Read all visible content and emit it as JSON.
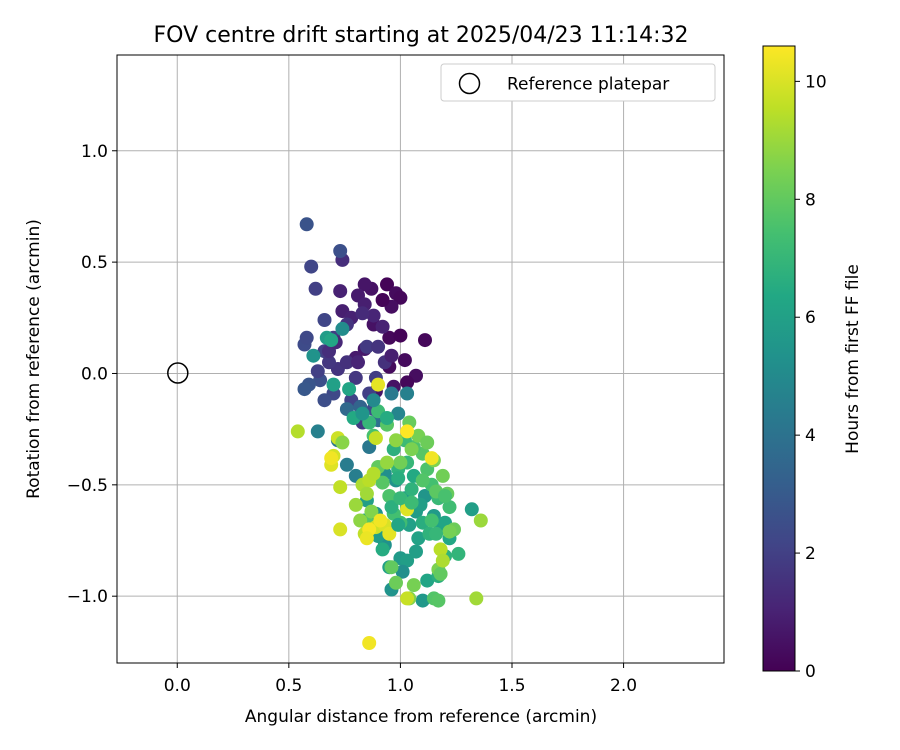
{
  "chart_data": {
    "type": "scatter",
    "title": "FOV centre drift starting at 2025/04/23 11:14:32",
    "xlabel": "Angular distance from reference (arcmin)",
    "ylabel": "Rotation from reference (arcmin)",
    "colorbar_label": "Hours from first FF file",
    "xlim": [
      -0.27,
      2.45
    ],
    "ylim": [
      -1.3,
      1.43
    ],
    "x_ticks": [
      0.0,
      0.5,
      1.0,
      1.5,
      2.0
    ],
    "x_tick_labels": [
      "0.0",
      "0.5",
      "1.0",
      "1.5",
      "2.0"
    ],
    "y_ticks": [
      -1.0,
      -0.5,
      0.0,
      0.5,
      1.0
    ],
    "y_tick_labels": [
      "−1.0",
      "−0.5",
      "0.0",
      "0.5",
      "1.0"
    ],
    "colorbar_range": [
      0,
      10.6
    ],
    "colorbar_ticks": [
      0,
      2,
      4,
      6,
      8,
      10
    ],
    "colorbar_tick_labels": [
      "0",
      "2",
      "4",
      "6",
      "8",
      "10"
    ],
    "colormap": "viridis",
    "grid": true,
    "legend": {
      "placement": "top-right",
      "entries": [
        "Reference platepar"
      ]
    },
    "reference": {
      "x": 0.0,
      "y": 0.0,
      "label": "Reference platepar"
    },
    "points": [
      [
        0.94,
        0.4,
        0.1
      ],
      [
        0.98,
        0.36,
        0.3
      ],
      [
        1.0,
        0.34,
        0.2
      ],
      [
        0.96,
        0.3,
        0.4
      ],
      [
        0.92,
        0.33,
        0.1
      ],
      [
        0.87,
        0.38,
        0.5
      ],
      [
        0.84,
        0.4,
        0.6
      ],
      [
        0.88,
        0.22,
        0.5
      ],
      [
        0.95,
        0.16,
        0.2
      ],
      [
        1.0,
        0.17,
        0.1
      ],
      [
        1.11,
        0.15,
        0.2
      ],
      [
        1.02,
        0.06,
        0.3
      ],
      [
        1.07,
        -0.01,
        0.4
      ],
      [
        1.03,
        -0.04,
        0.2
      ],
      [
        0.95,
        0.03,
        0.3
      ],
      [
        0.97,
        -0.06,
        0.5
      ],
      [
        0.89,
        -0.08,
        0.6
      ],
      [
        0.84,
        0.11,
        0.7
      ],
      [
        0.8,
        0.07,
        0.8
      ],
      [
        0.74,
        0.28,
        0.9
      ],
      [
        0.78,
        0.25,
        1.0
      ],
      [
        0.73,
        0.37,
        1.0
      ],
      [
        0.81,
        0.35,
        0.8
      ],
      [
        0.74,
        0.51,
        1.4
      ],
      [
        0.73,
        0.55,
        2.6
      ],
      [
        0.58,
        0.67,
        2.7
      ],
      [
        0.6,
        0.48,
        2.2
      ],
      [
        0.62,
        0.38,
        2.0
      ],
      [
        0.66,
        0.24,
        2.2
      ],
      [
        0.7,
        0.16,
        1.9
      ],
      [
        0.72,
        0.02,
        1.6
      ],
      [
        0.76,
        0.05,
        1.5
      ],
      [
        0.8,
        -0.02,
        1.7
      ],
      [
        0.85,
        0.12,
        1.8
      ],
      [
        0.9,
        0.12,
        1.6
      ],
      [
        0.93,
        0.05,
        1.5
      ],
      [
        0.89,
        -0.02,
        1.9
      ],
      [
        0.86,
        -0.09,
        2.0
      ],
      [
        0.88,
        -0.16,
        2.4
      ],
      [
        0.83,
        -0.22,
        1.8
      ],
      [
        0.78,
        -0.12,
        2.1
      ],
      [
        0.7,
        -0.09,
        2.3
      ],
      [
        0.66,
        -0.12,
        2.5
      ],
      [
        0.64,
        -0.03,
        2.6
      ],
      [
        0.59,
        -0.05,
        2.8
      ],
      [
        0.57,
        -0.07,
        2.9
      ],
      [
        0.57,
        0.13,
        2.4
      ],
      [
        0.58,
        0.16,
        2.3
      ],
      [
        0.66,
        0.1,
        2.0
      ],
      [
        0.68,
        0.05,
        1.7
      ],
      [
        0.63,
        0.01,
        2.0
      ],
      [
        0.68,
        0.1,
        1.4
      ],
      [
        0.71,
        0.14,
        1.2
      ],
      [
        0.84,
        0.31,
        0.9
      ],
      [
        0.88,
        0.26,
        1.1
      ],
      [
        0.92,
        0.21,
        1.0
      ],
      [
        0.83,
        0.27,
        1.3
      ],
      [
        0.96,
        0.08,
        0.9
      ],
      [
        0.81,
        0.05,
        1.1
      ],
      [
        0.76,
        0.22,
        1.6
      ],
      [
        0.76,
        -0.16,
        3.6
      ],
      [
        0.82,
        -0.15,
        3.4
      ],
      [
        0.72,
        -0.3,
        4.2
      ],
      [
        0.63,
        -0.26,
        4.6
      ],
      [
        0.76,
        -0.41,
        4.4
      ],
      [
        0.8,
        -0.46,
        4.5
      ],
      [
        0.86,
        -0.33,
        4.2
      ],
      [
        0.9,
        -0.21,
        3.9
      ],
      [
        0.96,
        -0.09,
        4.3
      ],
      [
        1.03,
        -0.09,
        4.6
      ],
      [
        0.99,
        -0.18,
        4.8
      ],
      [
        0.93,
        -0.45,
        5.2
      ],
      [
        0.98,
        -0.48,
        5.4
      ],
      [
        1.02,
        -0.56,
        5.6
      ],
      [
        1.07,
        -0.62,
        5.8
      ],
      [
        1.04,
        -0.68,
        6.0
      ],
      [
        1.08,
        -0.74,
        6.1
      ],
      [
        1.0,
        -0.83,
        5.7
      ],
      [
        1.03,
        -0.84,
        5.9
      ],
      [
        0.95,
        -0.87,
        6.0
      ],
      [
        0.93,
        -0.77,
        5.3
      ],
      [
        0.89,
        -0.63,
        5.5
      ],
      [
        0.85,
        -0.57,
        5.9
      ],
      [
        0.84,
        -0.66,
        6.2
      ],
      [
        0.87,
        -0.7,
        6.1
      ],
      [
        0.9,
        -0.73,
        5.8
      ],
      [
        0.92,
        -0.79,
        6.5
      ],
      [
        0.96,
        -0.97,
        5.4
      ],
      [
        1.01,
        -0.89,
        5.2
      ],
      [
        1.1,
        -1.02,
        5.6
      ],
      [
        1.12,
        -0.93,
        6.2
      ],
      [
        1.17,
        -0.91,
        6.6
      ],
      [
        1.2,
        -0.82,
        6.8
      ],
      [
        1.26,
        -0.81,
        6.9
      ],
      [
        1.32,
        -0.61,
        5.9
      ],
      [
        1.22,
        -0.74,
        6.3
      ],
      [
        1.18,
        -0.68,
        6.0
      ],
      [
        1.15,
        -0.64,
        5.7
      ],
      [
        1.11,
        -0.55,
        5.5
      ],
      [
        1.09,
        -0.59,
        5.9
      ],
      [
        1.2,
        -0.67,
        6.2
      ],
      [
        1.17,
        -0.56,
        7.1
      ],
      [
        1.14,
        -0.5,
        7.4
      ],
      [
        1.12,
        -0.43,
        7.6
      ],
      [
        1.1,
        -0.36,
        7.8
      ],
      [
        1.06,
        -0.33,
        7.6
      ],
      [
        1.02,
        -0.3,
        7.2
      ],
      [
        1.03,
        -0.4,
        7.0
      ],
      [
        0.99,
        -0.43,
        6.8
      ],
      [
        0.99,
        -0.47,
        6.6
      ],
      [
        1.05,
        -0.52,
        6.8
      ],
      [
        1.03,
        -0.6,
        7.0
      ],
      [
        1.0,
        -0.67,
        7.3
      ],
      [
        0.97,
        -0.63,
        7.4
      ],
      [
        0.95,
        -0.55,
        7.6
      ],
      [
        0.92,
        -0.49,
        7.8
      ],
      [
        0.9,
        -0.42,
        8.0
      ],
      [
        0.88,
        -0.28,
        7.5
      ],
      [
        0.86,
        -0.22,
        7.0
      ],
      [
        0.9,
        -0.17,
        7.2
      ],
      [
        0.94,
        -0.23,
        7.8
      ],
      [
        1.04,
        -0.22,
        8.1
      ],
      [
        1.08,
        -0.28,
        8.4
      ],
      [
        1.12,
        -0.31,
        8.2
      ],
      [
        1.15,
        -0.39,
        8.6
      ],
      [
        1.19,
        -0.46,
        8.3
      ],
      [
        1.16,
        -0.53,
        7.9
      ],
      [
        1.21,
        -0.54,
        8.1
      ],
      [
        1.24,
        -0.7,
        8.2
      ],
      [
        1.22,
        -0.71,
        8.4
      ],
      [
        1.17,
        -0.88,
        8.5
      ],
      [
        1.18,
        -0.9,
        8.0
      ],
      [
        1.15,
        -1.01,
        7.7
      ],
      [
        1.17,
        -1.02,
        7.8
      ],
      [
        1.04,
        -1.01,
        8.6
      ],
      [
        1.06,
        -0.95,
        8.4
      ],
      [
        0.98,
        -0.94,
        8.2
      ],
      [
        0.96,
        -0.87,
        8.0
      ],
      [
        0.85,
        -0.67,
        7.8
      ],
      [
        0.87,
        -0.62,
        8.6
      ],
      [
        0.82,
        -0.66,
        8.8
      ],
      [
        0.8,
        -0.59,
        9.0
      ],
      [
        0.83,
        -0.5,
        9.3
      ],
      [
        0.86,
        -0.48,
        9.5
      ],
      [
        0.88,
        -0.45,
        9.4
      ],
      [
        0.84,
        -0.72,
        9.6
      ],
      [
        0.89,
        -0.69,
        9.8
      ],
      [
        0.93,
        -0.68,
        10.0
      ],
      [
        0.95,
        -0.72,
        10.2
      ],
      [
        0.91,
        -0.66,
        10.4
      ],
      [
        0.86,
        -0.7,
        10.5
      ],
      [
        0.85,
        -0.74,
        10.3
      ],
      [
        0.69,
        -0.41,
        10.1
      ],
      [
        0.7,
        -0.37,
        9.9
      ],
      [
        0.72,
        -0.29,
        9.8
      ],
      [
        0.73,
        -0.51,
        9.6
      ],
      [
        0.73,
        -0.7,
        10.0
      ],
      [
        0.54,
        -0.26,
        9.4
      ],
      [
        0.69,
        -0.38,
        10.4
      ],
      [
        0.89,
        -0.29,
        9.7
      ],
      [
        1.03,
        -0.26,
        10.6
      ],
      [
        1.14,
        -0.38,
        10.4
      ],
      [
        1.18,
        -0.79,
        9.5
      ],
      [
        1.19,
        -0.84,
        9.3
      ],
      [
        1.34,
        -1.01,
        9.1
      ],
      [
        1.36,
        -0.66,
        9.0
      ],
      [
        1.03,
        -1.01,
        9.7
      ],
      [
        1.03,
        -0.61,
        10.1
      ],
      [
        0.86,
        -1.21,
        10.4
      ],
      [
        0.9,
        -0.05,
        10.2
      ],
      [
        0.74,
        -0.31,
        8.7
      ],
      [
        0.79,
        -0.2,
        6.4
      ],
      [
        0.77,
        -0.07,
        6.2
      ],
      [
        0.7,
        -0.05,
        6.0
      ],
      [
        0.67,
        0.16,
        5.8
      ],
      [
        0.69,
        0.15,
        6.2
      ],
      [
        0.61,
        0.08,
        5.4
      ],
      [
        0.74,
        0.2,
        5.1
      ],
      [
        0.83,
        -0.18,
        5.5
      ],
      [
        0.88,
        -0.12,
        5.0
      ],
      [
        0.94,
        -0.2,
        6.5
      ],
      [
        0.97,
        -0.34,
        6.7
      ],
      [
        1.06,
        -0.46,
        6.4
      ],
      [
        1.1,
        -0.67,
        6.6
      ],
      [
        1.13,
        -0.72,
        6.8
      ],
      [
        1.07,
        -0.8,
        5.9
      ],
      [
        0.99,
        -0.68,
        6.2
      ],
      [
        0.96,
        -0.6,
        6.7
      ],
      [
        1.0,
        -0.56,
        7.0
      ],
      [
        1.05,
        -0.58,
        7.2
      ],
      [
        1.14,
        -0.66,
        7.4
      ],
      [
        1.16,
        -0.72,
        7.0
      ],
      [
        1.22,
        -0.6,
        7.3
      ],
      [
        1.2,
        -0.55,
        7.5
      ],
      [
        1.1,
        -0.48,
        7.7
      ],
      [
        1.0,
        -0.4,
        8.3
      ],
      [
        1.05,
        -0.34,
        8.5
      ],
      [
        0.98,
        -0.3,
        8.8
      ],
      [
        0.94,
        -0.4,
        8.9
      ],
      [
        0.85,
        -0.54,
        9.1
      ]
    ]
  }
}
